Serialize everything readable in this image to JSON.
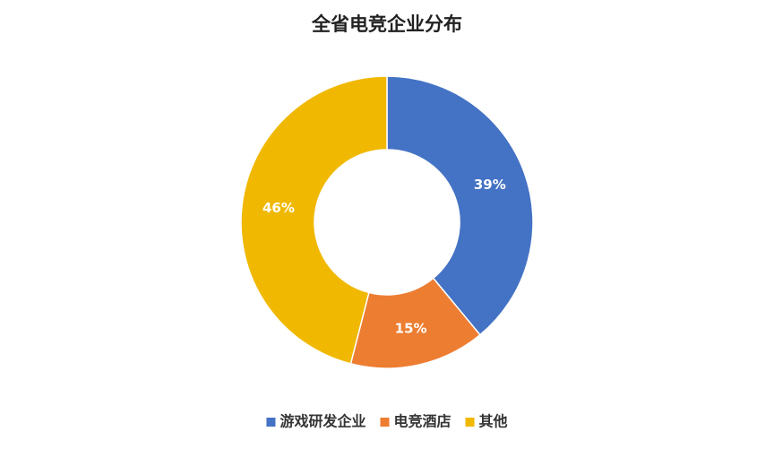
{
  "chart_data": {
    "type": "donut",
    "title": "全省电竞企业分布",
    "categories": [
      "游戏研发企业",
      "电竞酒店",
      "其他"
    ],
    "values": [
      39,
      15,
      46
    ],
    "value_labels": [
      "39%",
      "15%",
      "46%"
    ],
    "colors": [
      "#4472c4",
      "#ed7d31",
      "#f0b800"
    ],
    "legend": "bottom"
  }
}
